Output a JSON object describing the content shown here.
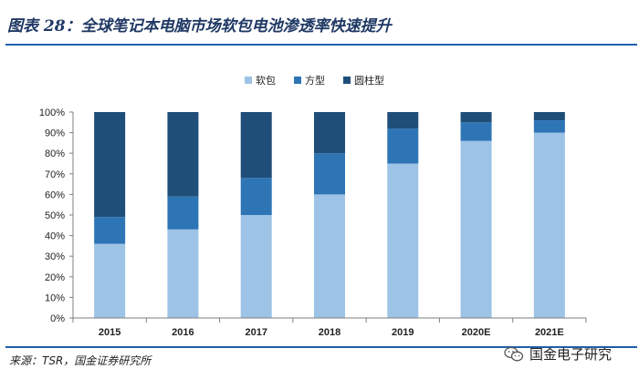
{
  "header": {
    "title": "图表 28：全球笔记本电脑市场软包电池渗透率快速提升"
  },
  "footer": {
    "source": "来源：TSR，国金证券研究所",
    "watermark": "国金电子研究"
  },
  "chart_data": {
    "type": "bar",
    "stacked": true,
    "title": "",
    "xlabel": "",
    "ylabel": "",
    "ylim": [
      0,
      100
    ],
    "y_ticks": [
      "0%",
      "10%",
      "20%",
      "30%",
      "40%",
      "50%",
      "60%",
      "70%",
      "80%",
      "90%",
      "100%"
    ],
    "categories": [
      "2015",
      "2016",
      "2017",
      "2018",
      "2019",
      "2020E",
      "2021E"
    ],
    "legend_position": "top-center",
    "series": [
      {
        "name": "软包",
        "color": "#9dc3e6",
        "values": [
          36,
          43,
          50,
          60,
          75,
          86,
          90
        ]
      },
      {
        "name": "方型",
        "color": "#2e75b6",
        "values": [
          13,
          16,
          18,
          20,
          17,
          9,
          6
        ]
      },
      {
        "name": "圆柱型",
        "color": "#1f4e79",
        "values": [
          51,
          41,
          32,
          20,
          8,
          5,
          4
        ]
      }
    ]
  }
}
